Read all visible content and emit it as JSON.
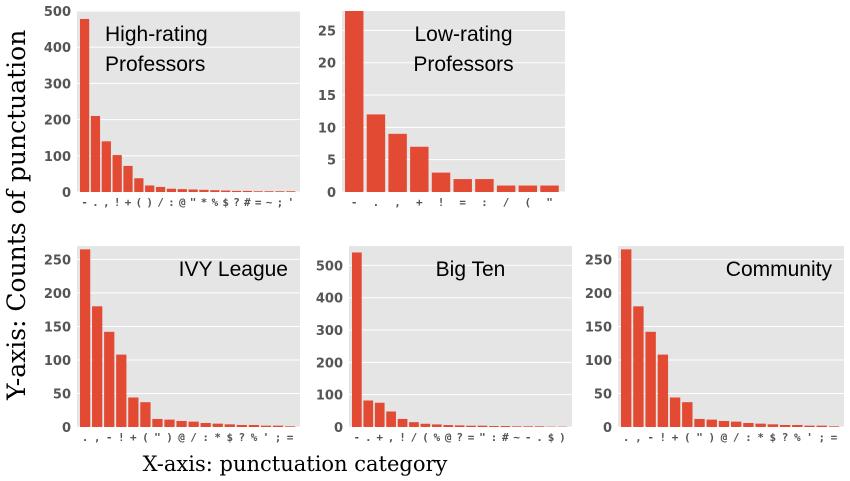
{
  "figure": {
    "ylabel": "Y-axis: Counts of punctuation",
    "xlabel": "X-axis: punctuation category"
  },
  "colors": {
    "bar": "#e24a33",
    "panel": "#e5e5e5",
    "grid": "#ffffff"
  },
  "chart_data": [
    {
      "type": "bar",
      "title": [
        "High-rating",
        "Professors"
      ],
      "title_placement": "top-left",
      "categories": [
        "-",
        ".",
        ",",
        "!",
        "+",
        "(",
        ")",
        "/",
        ":",
        "@",
        "\"",
        "*",
        "%",
        "$",
        "?",
        "#",
        "=",
        "~",
        ";",
        "'"
      ],
      "values": [
        478,
        210,
        140,
        102,
        72,
        38,
        18,
        14,
        9,
        8,
        7,
        6,
        5,
        4,
        3,
        3,
        2,
        2,
        2,
        2
      ],
      "ylim": [
        0,
        500
      ],
      "yticks": [
        0,
        100,
        200,
        300,
        400,
        500
      ],
      "xlabel": "",
      "ylabel": "",
      "grid": true
    },
    {
      "type": "bar",
      "title": [
        "Low-rating",
        "Professors"
      ],
      "title_placement": "top-center",
      "categories": [
        "-",
        ".",
        ",",
        "+",
        "!",
        "=",
        ":",
        "/",
        "(",
        "\""
      ],
      "values": [
        28,
        12,
        9,
        7,
        3,
        2,
        2,
        1,
        1,
        1
      ],
      "ylim": [
        0,
        28
      ],
      "yticks": [
        0,
        5,
        10,
        15,
        20,
        25
      ],
      "xlabel": "",
      "ylabel": "",
      "grid": true
    },
    {
      "type": "bar",
      "title": [
        "IVY League"
      ],
      "title_placement": "top-right",
      "categories": [
        ".",
        ",",
        "-",
        "!",
        "+",
        "(",
        "\"",
        ")",
        "@",
        "/",
        ":",
        "*",
        "$",
        "?",
        "%",
        "'",
        ";",
        "="
      ],
      "values": [
        265,
        180,
        142,
        108,
        44,
        37,
        12,
        11,
        9,
        8,
        6,
        5,
        4,
        3,
        3,
        2,
        2,
        1
      ],
      "ylim": [
        0,
        270
      ],
      "yticks": [
        0,
        50,
        100,
        150,
        200,
        250
      ],
      "xlabel": "",
      "ylabel": "",
      "grid": true
    },
    {
      "type": "bar",
      "title": [
        "Big Ten"
      ],
      "title_placement": "top-center",
      "categories": [
        "-",
        ".",
        "+",
        ",",
        "!",
        "/",
        "(",
        "%",
        "@",
        "?",
        "=",
        "\"",
        ":",
        "#",
        "~",
        "-",
        ".",
        "$",
        ")"
      ],
      "values": [
        540,
        82,
        75,
        48,
        25,
        15,
        10,
        8,
        6,
        5,
        4,
        4,
        3,
        3,
        2,
        2,
        2,
        1,
        1
      ],
      "ylim": [
        0,
        560
      ],
      "yticks": [
        0,
        100,
        200,
        300,
        400,
        500
      ],
      "xlabel": "",
      "ylabel": "",
      "grid": true
    },
    {
      "type": "bar",
      "title": [
        "Community"
      ],
      "title_placement": "top-right",
      "categories": [
        ".",
        ",",
        "-",
        "!",
        "+",
        "(",
        "\"",
        ")",
        "@",
        "/",
        ":",
        "*",
        "$",
        "?",
        "%",
        "'",
        ";",
        "="
      ],
      "values": [
        265,
        180,
        142,
        108,
        44,
        37,
        12,
        11,
        9,
        8,
        6,
        5,
        4,
        3,
        3,
        2,
        2,
        1
      ],
      "ylim": [
        0,
        270
      ],
      "yticks": [
        0,
        50,
        100,
        150,
        200,
        250
      ],
      "xlabel": "",
      "ylabel": "",
      "grid": true
    }
  ]
}
